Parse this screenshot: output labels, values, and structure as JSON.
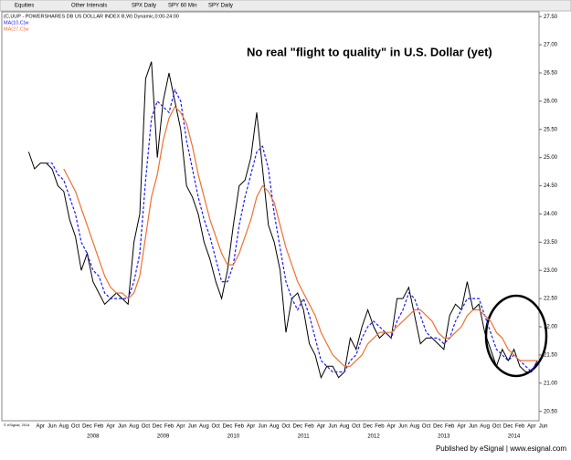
{
  "toolbar": {
    "items": [
      "Equities",
      "Other Intervals",
      "SPX Daily",
      "SPY 60 Min",
      "SPY Daily"
    ]
  },
  "footer": "Published by eSignal | www.esignal.com",
  "copyright": "© eSignal, 2014",
  "chart_data": {
    "type": "line",
    "annotation": "No real \"flight to quality\" in U.S. Dollar (yet)",
    "categories": [
      null,
      null,
      null,
      "Apr",
      null,
      "Jun",
      null,
      "Aug",
      null,
      "Oct",
      null,
      "Dec",
      null,
      "Feb",
      null,
      "Apr",
      null,
      "Jun",
      null,
      "Aug",
      null,
      "Oct",
      null,
      "Dec",
      null,
      "Feb",
      null,
      "Apr",
      null,
      "Jun",
      null,
      "Aug",
      null,
      "Oct",
      null,
      "Dec",
      null,
      "Feb",
      null,
      "Apr",
      null,
      "Jun",
      null,
      "Aug",
      null,
      "Oct",
      null,
      "Dec",
      null,
      "Feb",
      null,
      "Apr",
      null,
      "Jun",
      null,
      "Aug",
      null,
      "Oct",
      null,
      "Dec",
      null,
      "Feb",
      null,
      "Apr",
      null,
      "Jun",
      null,
      "Aug",
      null,
      "Oct",
      null,
      "Dec",
      null,
      "Feb",
      null,
      "Apr",
      null,
      "Jun",
      null,
      "Aug",
      null,
      "Oct",
      null,
      "Dec",
      null,
      "Feb",
      null,
      "Apr",
      null,
      "Jun"
    ],
    "years": [
      null,
      null,
      null,
      null,
      null,
      null,
      null,
      null,
      null,
      null,
      null,
      null,
      "2008",
      null,
      null,
      null,
      null,
      null,
      null,
      null,
      null,
      null,
      null,
      null,
      "2009",
      null,
      null,
      null,
      null,
      null,
      null,
      null,
      null,
      null,
      null,
      null,
      "2010",
      null,
      null,
      null,
      null,
      null,
      null,
      null,
      null,
      null,
      null,
      null,
      "2011",
      null,
      null,
      null,
      null,
      null,
      null,
      null,
      null,
      null,
      null,
      null,
      "2012",
      null,
      null,
      null,
      null,
      null,
      null,
      null,
      null,
      null,
      null,
      null,
      "2013",
      null,
      null,
      null,
      null,
      null,
      null,
      null,
      null,
      null,
      null,
      null,
      "2014",
      null,
      null,
      null,
      null,
      null
    ],
    "series": [
      {
        "name": "(C,UUP - POWERSHARES DB US DOLLAR INDEX B,W) Dynamic,0:00-24:00",
        "color": "#000000",
        "dash": false,
        "values": [
          null,
          25.1,
          24.8,
          24.9,
          24.9,
          24.8,
          24.5,
          24.4,
          23.9,
          23.6,
          23.0,
          23.3,
          22.8,
          22.6,
          22.4,
          22.5,
          22.6,
          22.5,
          22.4,
          23.5,
          24.0,
          26.4,
          26.7,
          25.0,
          26.0,
          26.5,
          26.0,
          25.5,
          24.5,
          24.3,
          24.0,
          23.5,
          23.2,
          22.8,
          22.5,
          23.0,
          23.8,
          24.5,
          24.6,
          25.0,
          25.8,
          24.8,
          23.8,
          23.5,
          23.0,
          21.9,
          22.5,
          22.6,
          22.3,
          21.7,
          21.5,
          21.1,
          21.3,
          21.3,
          21.1,
          21.2,
          21.8,
          21.6,
          22.0,
          22.3,
          22.0,
          21.8,
          21.9,
          21.8,
          22.5,
          22.5,
          22.7,
          22.2,
          21.7,
          21.8,
          21.8,
          21.7,
          21.6,
          22.2,
          22.4,
          22.3,
          22.8,
          22.3,
          22.4,
          21.9,
          21.6,
          21.3,
          21.6,
          21.4,
          21.6,
          21.3,
          21.2,
          21.2,
          21.4,
          null
        ]
      },
      {
        "name": "MA(10,C)w",
        "color": "#1a1aff",
        "dash": true,
        "values": [
          null,
          null,
          null,
          null,
          24.9,
          24.9,
          24.7,
          24.6,
          24.3,
          24.0,
          23.5,
          23.3,
          23.0,
          22.9,
          22.6,
          22.5,
          22.5,
          22.5,
          22.5,
          22.8,
          23.3,
          24.6,
          25.7,
          26.0,
          25.9,
          25.8,
          26.2,
          26.0,
          25.3,
          24.8,
          24.3,
          23.9,
          23.6,
          23.2,
          22.8,
          22.8,
          23.1,
          23.8,
          24.3,
          24.7,
          25.1,
          25.2,
          24.8,
          24.0,
          23.4,
          22.8,
          22.5,
          22.3,
          22.5,
          22.2,
          21.8,
          21.4,
          21.3,
          21.2,
          21.2,
          21.2,
          21.4,
          21.5,
          21.8,
          22.0,
          22.1,
          22.0,
          21.9,
          21.8,
          22.1,
          22.3,
          22.6,
          22.5,
          22.2,
          21.9,
          21.8,
          21.8,
          21.7,
          21.8,
          22.1,
          22.3,
          22.5,
          22.5,
          22.5,
          22.2,
          21.9,
          21.6,
          21.5,
          21.4,
          21.5,
          21.4,
          21.3,
          21.2,
          21.4,
          null
        ]
      },
      {
        "name": "MA(27,C)w",
        "color": "#f07030",
        "dash": false,
        "values": [
          null,
          null,
          null,
          null,
          null,
          null,
          null,
          24.8,
          24.6,
          24.4,
          24.1,
          23.8,
          23.5,
          23.2,
          22.9,
          22.7,
          22.6,
          22.6,
          22.5,
          22.6,
          22.9,
          23.6,
          24.3,
          24.7,
          25.3,
          25.7,
          25.9,
          25.8,
          25.6,
          25.2,
          24.7,
          24.3,
          23.9,
          23.6,
          23.3,
          23.1,
          23.1,
          23.3,
          23.6,
          23.9,
          24.3,
          24.5,
          24.4,
          24.2,
          23.8,
          23.4,
          23.1,
          22.8,
          22.6,
          22.4,
          22.2,
          21.9,
          21.7,
          21.5,
          21.4,
          21.3,
          21.3,
          21.4,
          21.5,
          21.7,
          21.8,
          21.9,
          21.9,
          21.9,
          22.0,
          22.1,
          22.2,
          22.3,
          22.3,
          22.2,
          22.1,
          21.9,
          21.8,
          21.8,
          21.9,
          22.0,
          22.2,
          22.3,
          22.3,
          22.2,
          22.1,
          21.9,
          21.8,
          21.6,
          21.5,
          21.4,
          21.4,
          21.4,
          21.4,
          null
        ]
      }
    ],
    "ylim": [
      20.35,
      27.6
    ],
    "yticks": [
      {
        "value": 20.5,
        "label": "20.50"
      },
      {
        "value": 21,
        "label": "21.00"
      },
      {
        "value": 21.5,
        "label": "21.50"
      },
      {
        "value": 22,
        "label": "22.00"
      },
      {
        "value": 22.5,
        "label": "22.50"
      },
      {
        "value": 23,
        "label": "23.00"
      },
      {
        "value": 23.5,
        "label": "23.50"
      },
      {
        "value": 24,
        "label": "24.00"
      },
      {
        "value": 24.5,
        "label": "24.50"
      },
      {
        "value": 25,
        "label": "25.00"
      },
      {
        "value": 25.5,
        "label": "25.50"
      },
      {
        "value": 26,
        "label": "26.00"
      },
      {
        "value": 26.5,
        "label": "26.50"
      },
      {
        "value": 27,
        "label": "27.00"
      },
      {
        "value": 27.5,
        "label": "27.50"
      }
    ],
    "grid": false
  }
}
